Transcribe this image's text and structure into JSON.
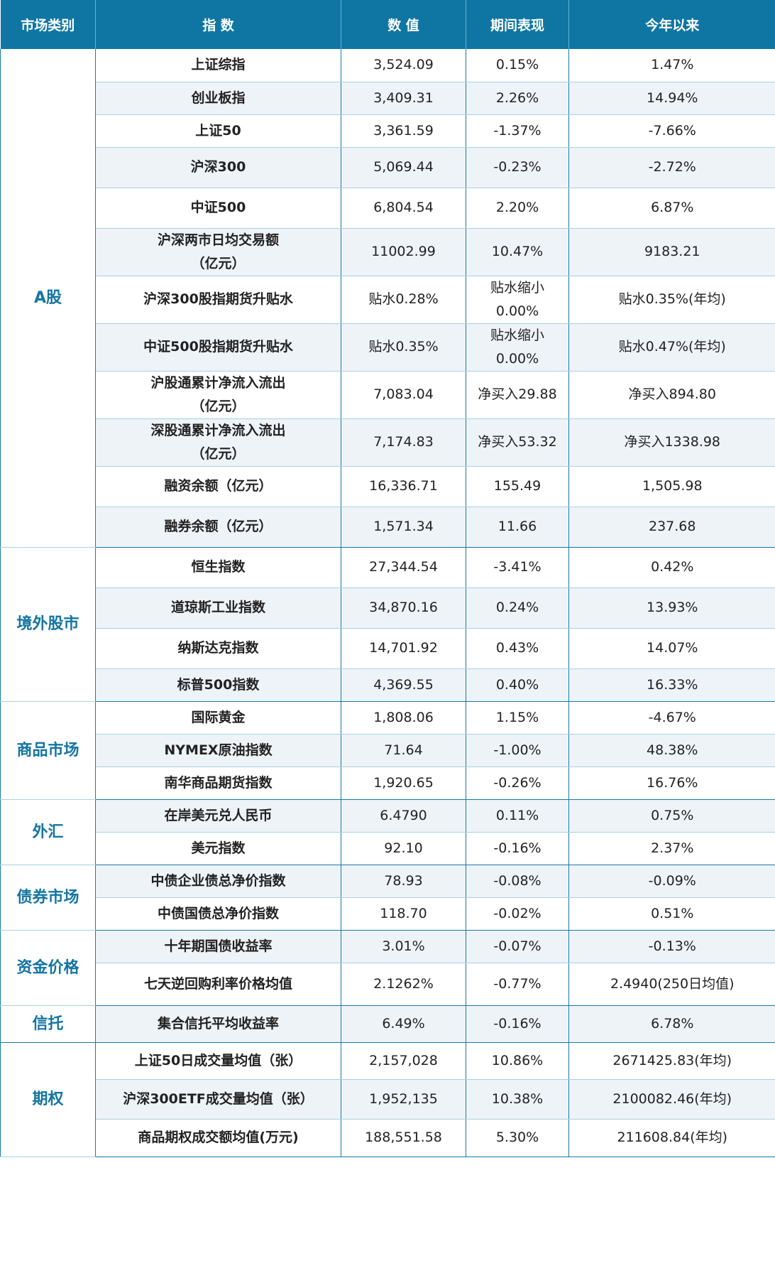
{
  "headers": [
    "市场类别",
    "指 数",
    "数 值",
    "期间表现",
    "今年以来"
  ],
  "groups": [
    {
      "category": "A股",
      "rows": [
        {
          "name": [
            "上证综指"
          ],
          "value": "3,524.09",
          "period": [
            "0.15%"
          ],
          "ytd": "1.47%"
        },
        {
          "name": [
            "创业板指"
          ],
          "value": "3,409.31",
          "period": [
            "2.26%"
          ],
          "ytd": "14.94%"
        },
        {
          "name": [
            "上证50"
          ],
          "value": "3,361.59",
          "period": [
            "-1.37%"
          ],
          "ytd": "-7.66%"
        },
        {
          "name": [
            "沪深300"
          ],
          "value": "5,069.44",
          "period": [
            "-0.23%"
          ],
          "ytd": "-2.72%"
        },
        {
          "name": [
            "中证500"
          ],
          "value": "6,804.54",
          "period": [
            "2.20%"
          ],
          "ytd": "6.87%"
        },
        {
          "name": [
            "沪深两市日均交易额",
            "（亿元）"
          ],
          "value": "11002.99",
          "period": [
            "10.47%"
          ],
          "ytd": "9183.21"
        },
        {
          "name": [
            "沪深300股指期货升贴水"
          ],
          "value": "贴水0.28%",
          "period": [
            "贴水缩小",
            "0.00%"
          ],
          "ytd": "贴水0.35%(年均)"
        },
        {
          "name": [
            "中证500股指期货升贴水"
          ],
          "value": "贴水0.35%",
          "period": [
            "贴水缩小",
            "0.00%"
          ],
          "ytd": "贴水0.47%(年均)"
        },
        {
          "name": [
            "沪股通累计净流入流出",
            "（亿元）"
          ],
          "value": "7,083.04",
          "period": [
            "净买入29.88"
          ],
          "ytd": "净买入894.80"
        },
        {
          "name": [
            "深股通累计净流入流出",
            "（亿元）"
          ],
          "value": "7,174.83",
          "period": [
            "净买入53.32"
          ],
          "ytd": "净买入1338.98"
        },
        {
          "name": [
            "融资余额（亿元）"
          ],
          "value": "16,336.71",
          "period": [
            "155.49"
          ],
          "ytd": "1,505.98"
        },
        {
          "name": [
            "融券余额（亿元）"
          ],
          "value": "1,571.34",
          "period": [
            "11.66"
          ],
          "ytd": "237.68"
        }
      ]
    },
    {
      "category": "境外股市",
      "rows": [
        {
          "name": [
            "恒生指数"
          ],
          "value": "27,344.54",
          "period": [
            "-3.41%"
          ],
          "ytd": "0.42%"
        },
        {
          "name": [
            "道琼斯工业指数"
          ],
          "value": "34,870.16",
          "period": [
            "0.24%"
          ],
          "ytd": "13.93%"
        },
        {
          "name": [
            "纳斯达克指数"
          ],
          "value": "14,701.92",
          "period": [
            "0.43%"
          ],
          "ytd": "14.07%"
        },
        {
          "name": [
            "标普500指数"
          ],
          "value": "4,369.55",
          "period": [
            "0.40%"
          ],
          "ytd": "16.33%"
        }
      ]
    },
    {
      "category": "商品市场",
      "rows": [
        {
          "name": [
            "国际黄金"
          ],
          "value": "1,808.06",
          "period": [
            "1.15%"
          ],
          "ytd": "-4.67%"
        },
        {
          "name": [
            "NYMEX原油指数"
          ],
          "value": "71.64",
          "period": [
            "-1.00%"
          ],
          "ytd": "48.38%"
        },
        {
          "name": [
            "南华商品期货指数"
          ],
          "value": "1,920.65",
          "period": [
            "-0.26%"
          ],
          "ytd": "16.76%"
        }
      ]
    },
    {
      "category": "外汇",
      "rows": [
        {
          "name": [
            "在岸美元兑人民币"
          ],
          "value": "6.4790",
          "period": [
            "0.11%"
          ],
          "ytd": "0.75%"
        },
        {
          "name": [
            "美元指数"
          ],
          "value": "92.10",
          "period": [
            "-0.16%"
          ],
          "ytd": "2.37%"
        }
      ]
    },
    {
      "category": "债券市场",
      "rows": [
        {
          "name": [
            "中债企业债总净价指数"
          ],
          "value": "78.93",
          "period": [
            "-0.08%"
          ],
          "ytd": "-0.09%"
        },
        {
          "name": [
            "中债国债总净价指数"
          ],
          "value": "118.70",
          "period": [
            "-0.02%"
          ],
          "ytd": "0.51%"
        }
      ]
    },
    {
      "category": "资金价格",
      "rows": [
        {
          "name": [
            "十年期国债收益率"
          ],
          "value": "3.01%",
          "period": [
            "-0.07%"
          ],
          "ytd": "-0.13%"
        },
        {
          "name": [
            "七天逆回购利率价格均值"
          ],
          "value": "2.1262%",
          "period": [
            "-0.77%"
          ],
          "ytd": "2.4940(250日均值)"
        }
      ]
    },
    {
      "category": "信托",
      "rows": [
        {
          "name": [
            "集合信托平均收益率"
          ],
          "value": "6.49%",
          "period": [
            "-0.16%"
          ],
          "ytd": "6.78%"
        }
      ]
    },
    {
      "category": "期权",
      "rows": [
        {
          "name": [
            "上证50日成交量均值（张）"
          ],
          "value": "2,157,028",
          "period": [
            "10.86%"
          ],
          "ytd": "2671425.83(年均)"
        },
        {
          "name": [
            "沪深300ETF成交量均值（张）"
          ],
          "value": "1,952,135",
          "period": [
            "10.38%"
          ],
          "ytd": "2100082.46(年均)"
        },
        {
          "name": [
            "商品期权成交额均值(万元)"
          ],
          "value": "188,551.58",
          "period": [
            "5.30%"
          ],
          "ytd": "211608.84(年均)"
        }
      ]
    }
  ]
}
